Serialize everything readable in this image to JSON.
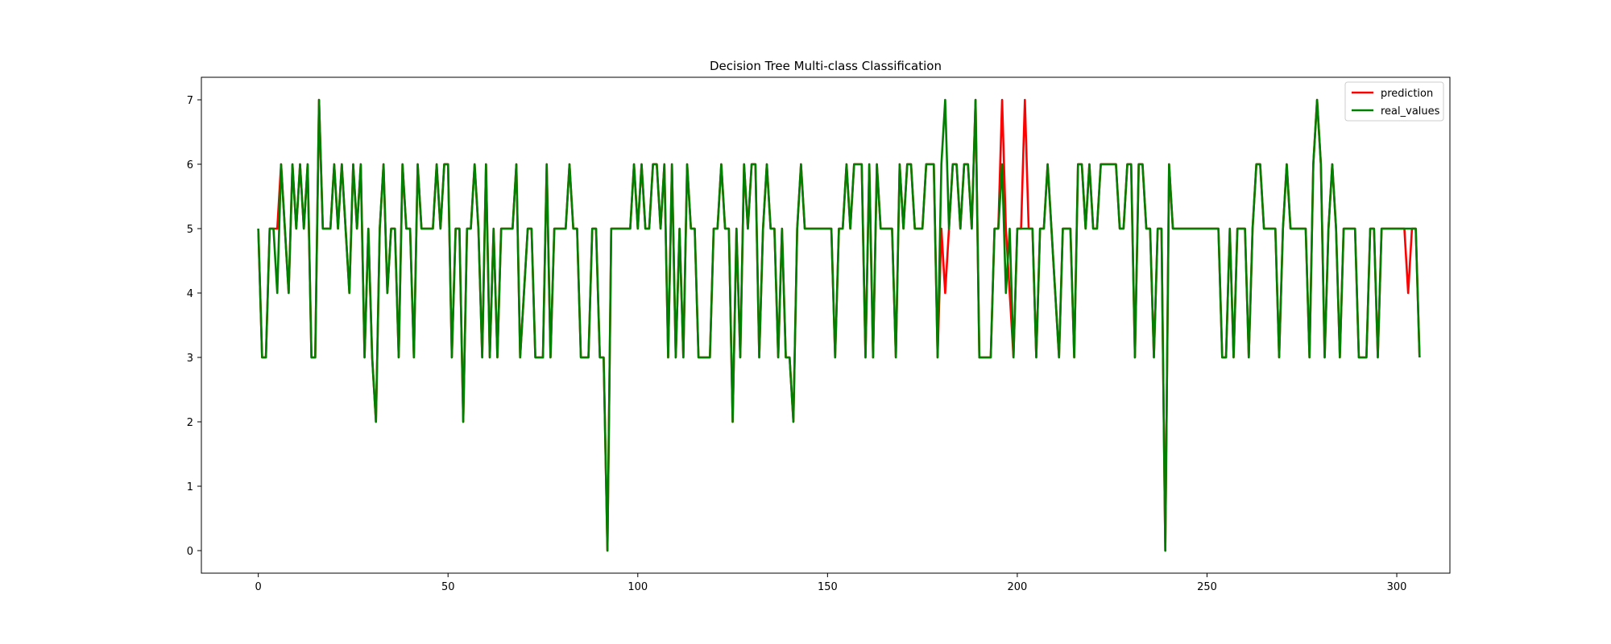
{
  "chart_data": {
    "type": "line",
    "title": "Decision Tree Multi-class Classification",
    "xlabel": "",
    "ylabel": "",
    "xlim": [
      -15,
      314
    ],
    "ylim": [
      -0.35,
      7.35
    ],
    "xticks": [
      0,
      50,
      100,
      150,
      200,
      250,
      300
    ],
    "yticks": [
      0,
      1,
      2,
      3,
      4,
      5,
      6,
      7
    ],
    "grid": false,
    "legend_position": "top-right",
    "series": [
      {
        "name": "prediction",
        "color": "#ff0000",
        "values": [
          5,
          3,
          3,
          5,
          5,
          5,
          6,
          5,
          4,
          6,
          5,
          6,
          5,
          6,
          3,
          3,
          7,
          5,
          5,
          5,
          6,
          5,
          6,
          5,
          4,
          6,
          5,
          6,
          3,
          5,
          3,
          2,
          5,
          6,
          4,
          5,
          5,
          3,
          6,
          5,
          5,
          3,
          6,
          5,
          5,
          5,
          5,
          6,
          5,
          6,
          6,
          3,
          5,
          5,
          2,
          5,
          5,
          6,
          5,
          3,
          6,
          3,
          5,
          3,
          5,
          5,
          5,
          5,
          6,
          3,
          4,
          5,
          5,
          3,
          3,
          3,
          6,
          3,
          5,
          5,
          5,
          5,
          6,
          5,
          5,
          3,
          3,
          3,
          5,
          5,
          3,
          3,
          0,
          5,
          5,
          5,
          5,
          5,
          5,
          6,
          5,
          6,
          5,
          5,
          6,
          6,
          5,
          6,
          3,
          6,
          3,
          5,
          3,
          6,
          5,
          5,
          3,
          3,
          3,
          3,
          5,
          5,
          6,
          5,
          5,
          2,
          5,
          3,
          6,
          5,
          6,
          6,
          3,
          5,
          6,
          5,
          5,
          3,
          5,
          3,
          3,
          2,
          5,
          6,
          5,
          5,
          5,
          5,
          5,
          5,
          5,
          5,
          3,
          5,
          5,
          6,
          5,
          6,
          6,
          6,
          3,
          6,
          3,
          6,
          5,
          5,
          5,
          5,
          3,
          6,
          5,
          6,
          6,
          5,
          5,
          5,
          6,
          6,
          6,
          3,
          5,
          4,
          5,
          6,
          6,
          5,
          6,
          6,
          5,
          7,
          3,
          3,
          3,
          3,
          5,
          5,
          7,
          5,
          4,
          3,
          5,
          5,
          7,
          5,
          5,
          3,
          5,
          5,
          6,
          5,
          4,
          3,
          5,
          5,
          5,
          3,
          6,
          6,
          5,
          6,
          5,
          5,
          6,
          6,
          6,
          6,
          6,
          5,
          5,
          6,
          6,
          3,
          6,
          6,
          5,
          5,
          3,
          5,
          5,
          0,
          6,
          5,
          5,
          5,
          5,
          5,
          5,
          5,
          5,
          5,
          5,
          5,
          5,
          5,
          3,
          3,
          5,
          3,
          5,
          5,
          5,
          3,
          5,
          6,
          6,
          5,
          5,
          5,
          5,
          3,
          5,
          6,
          5,
          5,
          5,
          5,
          5,
          3,
          6,
          7,
          6,
          3,
          5,
          6,
          5,
          3,
          5,
          5,
          5,
          5,
          3,
          3,
          3,
          5,
          5,
          3,
          5,
          5,
          5,
          5,
          5,
          5,
          5,
          4,
          5,
          5,
          3
        ]
      },
      {
        "name": "real_values",
        "color": "#008000",
        "values": [
          5,
          3,
          3,
          5,
          5,
          4,
          6,
          5,
          4,
          6,
          5,
          6,
          5,
          6,
          3,
          3,
          7,
          5,
          5,
          5,
          6,
          5,
          6,
          5,
          4,
          6,
          5,
          6,
          3,
          5,
          3,
          2,
          5,
          6,
          4,
          5,
          5,
          3,
          6,
          5,
          5,
          3,
          6,
          5,
          5,
          5,
          5,
          6,
          5,
          6,
          6,
          3,
          5,
          5,
          2,
          5,
          5,
          6,
          5,
          3,
          6,
          3,
          5,
          3,
          5,
          5,
          5,
          5,
          6,
          3,
          4,
          5,
          5,
          3,
          3,
          3,
          6,
          3,
          5,
          5,
          5,
          5,
          6,
          5,
          5,
          3,
          3,
          3,
          5,
          5,
          3,
          3,
          0,
          5,
          5,
          5,
          5,
          5,
          5,
          6,
          5,
          6,
          5,
          5,
          6,
          6,
          5,
          6,
          3,
          6,
          3,
          5,
          3,
          6,
          5,
          5,
          3,
          3,
          3,
          3,
          5,
          5,
          6,
          5,
          5,
          2,
          5,
          3,
          6,
          5,
          6,
          6,
          3,
          5,
          6,
          5,
          5,
          3,
          5,
          3,
          3,
          2,
          5,
          6,
          5,
          5,
          5,
          5,
          5,
          5,
          5,
          5,
          3,
          5,
          5,
          6,
          5,
          6,
          6,
          6,
          3,
          6,
          3,
          6,
          5,
          5,
          5,
          5,
          3,
          6,
          5,
          6,
          6,
          5,
          5,
          5,
          6,
          6,
          6,
          3,
          6,
          7,
          5,
          6,
          6,
          5,
          6,
          6,
          5,
          7,
          3,
          3,
          3,
          3,
          5,
          5,
          6,
          4,
          5,
          3,
          5,
          5,
          5,
          5,
          5,
          3,
          5,
          5,
          6,
          5,
          4,
          3,
          5,
          5,
          5,
          3,
          6,
          6,
          5,
          6,
          5,
          5,
          6,
          6,
          6,
          6,
          6,
          5,
          5,
          6,
          6,
          3,
          6,
          6,
          5,
          5,
          3,
          5,
          5,
          0,
          6,
          5,
          5,
          5,
          5,
          5,
          5,
          5,
          5,
          5,
          5,
          5,
          5,
          5,
          3,
          3,
          5,
          3,
          5,
          5,
          5,
          3,
          5,
          6,
          6,
          5,
          5,
          5,
          5,
          3,
          5,
          6,
          5,
          5,
          5,
          5,
          5,
          3,
          6,
          7,
          6,
          3,
          5,
          6,
          5,
          3,
          5,
          5,
          5,
          5,
          3,
          3,
          3,
          5,
          5,
          3,
          5,
          5,
          5,
          5,
          5,
          5,
          5,
          5,
          5,
          5,
          3
        ]
      }
    ]
  }
}
